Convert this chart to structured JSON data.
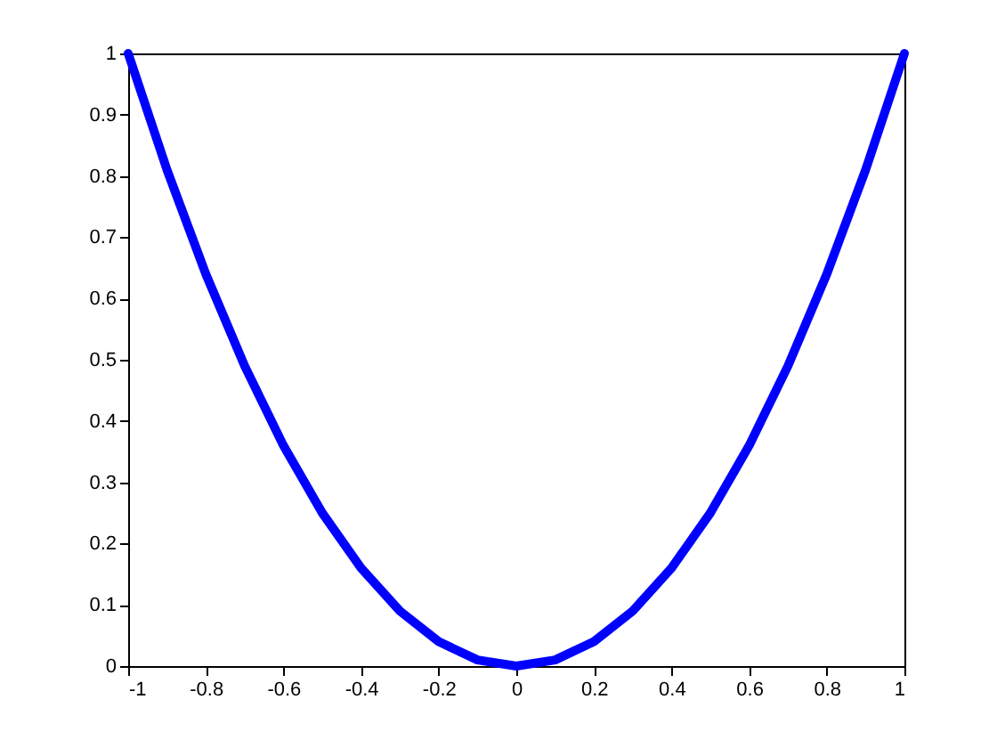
{
  "chart_data": {
    "type": "line",
    "x": [
      -1,
      -0.9,
      -0.8,
      -0.7,
      -0.6,
      -0.5,
      -0.4,
      -0.3,
      -0.2,
      -0.1,
      0,
      0.1,
      0.2,
      0.3,
      0.4,
      0.5,
      0.6,
      0.7,
      0.8,
      0.9,
      1
    ],
    "series": [
      {
        "color": "#0000ff",
        "values": [
          1,
          0.81,
          0.64,
          0.49,
          0.36,
          0.25,
          0.16,
          0.09,
          0.04,
          0.01,
          0,
          0.01,
          0.04,
          0.09,
          0.16,
          0.25,
          0.36,
          0.49,
          0.64,
          0.81,
          1
        ]
      }
    ],
    "xlim": [
      -1,
      1
    ],
    "xticks": [
      -1,
      -0.8,
      -0.6,
      -0.4,
      -0.2,
      0,
      0.2,
      0.4,
      0.6,
      0.8,
      1
    ],
    "ylim": [
      0,
      1
    ],
    "yticks": [
      0,
      0.1,
      0.2,
      0.3,
      0.4,
      0.5,
      0.6,
      0.7,
      0.8,
      0.9,
      1
    ],
    "grid": false,
    "marker": "none",
    "line_style": "solid"
  }
}
